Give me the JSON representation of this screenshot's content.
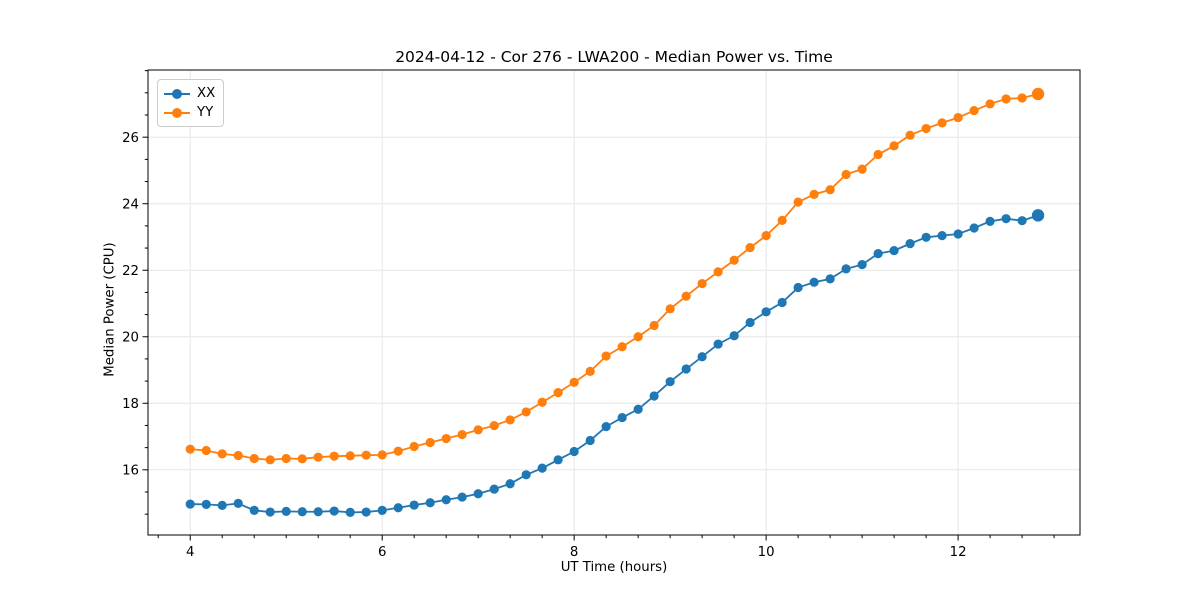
{
  "chart_data": {
    "type": "line",
    "title": "2024-04-12 - Cor 276 - LWA200 - Median Power vs. Time",
    "xlabel": "UT Time (hours)",
    "ylabel": "Median Power (CPU)",
    "xlim": [
      3.56,
      13.27
    ],
    "ylim": [
      14.04,
      28.02
    ],
    "x_major_ticks": [
      4,
      6,
      8,
      10,
      12
    ],
    "x_minor_step": 0.33333,
    "y_major_ticks": [
      16,
      18,
      20,
      22,
      24,
      26
    ],
    "y_minor_step": 0.66667,
    "grid": "major-only",
    "grid_color": "#e6e6e6",
    "axis_color": "#000000",
    "text_color": "#000000",
    "legend_position": "upper-left",
    "x": [
      4.0,
      4.167,
      4.333,
      4.5,
      4.667,
      4.833,
      5.0,
      5.167,
      5.333,
      5.5,
      5.667,
      5.833,
      6.0,
      6.167,
      6.333,
      6.5,
      6.667,
      6.833,
      7.0,
      7.167,
      7.333,
      7.5,
      7.667,
      7.833,
      8.0,
      8.167,
      8.333,
      8.5,
      8.667,
      8.833,
      9.0,
      9.167,
      9.333,
      9.5,
      9.667,
      9.833,
      10.0,
      10.167,
      10.333,
      10.5,
      10.667,
      10.833,
      11.0,
      11.167,
      11.333,
      11.5,
      11.667,
      11.833,
      12.0,
      12.167,
      12.333,
      12.5,
      12.667,
      12.833
    ],
    "series": [
      {
        "name": "XX",
        "color": "#1f77b4",
        "values": [
          14.97,
          14.96,
          14.93,
          14.99,
          14.78,
          14.73,
          14.75,
          14.74,
          14.74,
          14.76,
          14.72,
          14.73,
          14.78,
          14.86,
          14.94,
          15.01,
          15.1,
          15.18,
          15.28,
          15.42,
          15.58,
          15.85,
          16.05,
          16.3,
          16.55,
          16.88,
          17.3,
          17.57,
          17.82,
          18.22,
          18.65,
          19.03,
          19.4,
          19.78,
          20.03,
          20.43,
          20.75,
          21.03,
          21.48,
          21.64,
          21.74,
          22.04,
          22.17,
          22.5,
          22.59,
          22.8,
          22.99,
          23.04,
          23.09,
          23.27,
          23.47,
          23.55,
          23.49,
          23.65
        ]
      },
      {
        "name": "YY",
        "color": "#ff7f0e",
        "values": [
          16.62,
          16.58,
          16.48,
          16.43,
          16.34,
          16.3,
          16.34,
          16.33,
          16.38,
          16.41,
          16.42,
          16.44,
          16.45,
          16.56,
          16.7,
          16.82,
          16.94,
          17.06,
          17.2,
          17.33,
          17.5,
          17.74,
          18.03,
          18.32,
          18.63,
          18.96,
          19.42,
          19.7,
          20.0,
          20.34,
          20.84,
          21.22,
          21.6,
          21.95,
          22.3,
          22.68,
          23.04,
          23.5,
          24.05,
          24.28,
          24.42,
          24.88,
          25.04,
          25.48,
          25.74,
          26.06,
          26.26,
          26.43,
          26.59,
          26.8,
          27.0,
          27.15,
          27.18,
          27.3
        ]
      }
    ]
  }
}
